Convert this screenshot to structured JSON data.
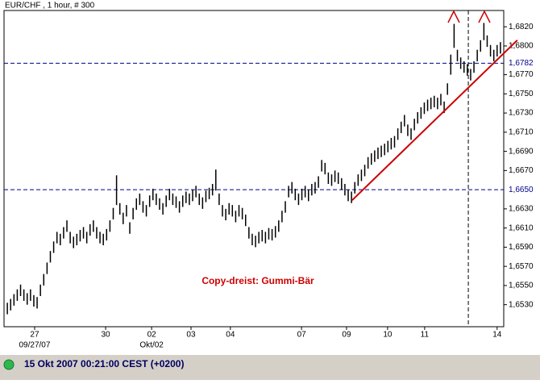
{
  "chart_data": {
    "type": "ohlc",
    "title": "EUR/CHF , 1 hour, # 300",
    "annotation": "Copy-dreist: Gummi-Bär",
    "status": "15 Okt 2007 00:21:00  CEST (+0200)",
    "color": "#000000",
    "xlim": [
      -1,
      150
    ],
    "ylim": [
      1.6507,
      1.6837
    ],
    "high": [
      1.6532,
      1.6536,
      1.6541,
      1.6546,
      1.6551,
      1.6546,
      1.6542,
      1.6546,
      1.654,
      1.6538,
      1.6551,
      1.6562,
      1.6574,
      1.6586,
      1.6596,
      1.6606,
      1.6604,
      1.6611,
      1.6618,
      1.6606,
      1.6601,
      1.6604,
      1.6608,
      1.6611,
      1.6606,
      1.6614,
      1.6618,
      1.6611,
      1.6606,
      1.6604,
      1.6609,
      1.6618,
      1.6631,
      1.6665,
      1.6636,
      1.6626,
      1.6634,
      1.6616,
      1.6631,
      1.6641,
      1.6646,
      1.6638,
      1.6634,
      1.6644,
      1.6651,
      1.6646,
      1.6641,
      1.6636,
      1.6644,
      1.6651,
      1.6646,
      1.6643,
      1.6638,
      1.6644,
      1.6648,
      1.6646,
      1.665,
      1.6654,
      1.6646,
      1.6642,
      1.6649,
      1.6652,
      1.6656,
      1.6671,
      1.6646,
      1.6634,
      1.663,
      1.6636,
      1.6634,
      1.6628,
      1.6634,
      1.6631,
      1.6624,
      1.6611,
      1.6604,
      1.6602,
      1.6606,
      1.6608,
      1.6606,
      1.661,
      1.6609,
      1.6612,
      1.6618,
      1.6628,
      1.6638,
      1.6654,
      1.6658,
      1.6651,
      1.6646,
      1.6651,
      1.6654,
      1.665,
      1.6656,
      1.6658,
      1.6664,
      1.6681,
      1.6678,
      1.6668,
      1.6666,
      1.667,
      1.6668,
      1.6662,
      1.6656,
      1.665,
      1.6648,
      1.6658,
      1.6666,
      1.6671,
      1.6676,
      1.6684,
      1.6688,
      1.6691,
      1.6694,
      1.6696,
      1.6698,
      1.6701,
      1.6704,
      1.6706,
      1.6714,
      1.6721,
      1.6728,
      1.6718,
      1.6714,
      1.6724,
      1.6731,
      1.6736,
      1.6741,
      1.6744,
      1.6746,
      1.6748,
      1.6746,
      1.675,
      1.6742,
      1.6761,
      1.6791,
      1.6823,
      1.6796,
      1.6788,
      1.6784,
      1.6781,
      1.6776,
      1.6784,
      1.6796,
      1.6806,
      1.6824,
      1.6811,
      1.6801,
      1.6796,
      1.6801,
      1.6804
    ],
    "low": [
      1.652,
      1.6524,
      1.6529,
      1.6534,
      1.6539,
      1.6534,
      1.653,
      1.6534,
      1.6528,
      1.6526,
      1.6539,
      1.655,
      1.6562,
      1.6574,
      1.6584,
      1.6594,
      1.6592,
      1.6599,
      1.6606,
      1.6594,
      1.6589,
      1.6592,
      1.6596,
      1.6599,
      1.6594,
      1.6602,
      1.6606,
      1.6599,
      1.6594,
      1.6592,
      1.6597,
      1.6606,
      1.6619,
      1.6634,
      1.6624,
      1.6614,
      1.6622,
      1.6604,
      1.6619,
      1.6629,
      1.6634,
      1.6626,
      1.6622,
      1.6632,
      1.6639,
      1.6634,
      1.6629,
      1.6624,
      1.6632,
      1.6639,
      1.6634,
      1.6631,
      1.6626,
      1.6632,
      1.6636,
      1.6634,
      1.6638,
      1.6642,
      1.6634,
      1.663,
      1.6637,
      1.664,
      1.6644,
      1.6649,
      1.6634,
      1.6622,
      1.6618,
      1.6624,
      1.6622,
      1.6616,
      1.6622,
      1.6619,
      1.6612,
      1.6599,
      1.6592,
      1.659,
      1.6594,
      1.6596,
      1.6594,
      1.6598,
      1.6597,
      1.66,
      1.6606,
      1.6616,
      1.6626,
      1.6642,
      1.6646,
      1.6639,
      1.6634,
      1.6639,
      1.6642,
      1.6638,
      1.6644,
      1.6646,
      1.6652,
      1.6669,
      1.6666,
      1.6656,
      1.6654,
      1.6658,
      1.6656,
      1.665,
      1.6644,
      1.6638,
      1.6636,
      1.6646,
      1.6654,
      1.6659,
      1.6664,
      1.6672,
      1.6676,
      1.6679,
      1.6682,
      1.6684,
      1.6686,
      1.6689,
      1.6692,
      1.6694,
      1.6702,
      1.6709,
      1.6716,
      1.6706,
      1.6702,
      1.6712,
      1.6719,
      1.6724,
      1.6729,
      1.6732,
      1.6734,
      1.6736,
      1.6734,
      1.6738,
      1.673,
      1.6749,
      1.677,
      1.6798,
      1.6784,
      1.6776,
      1.6772,
      1.6769,
      1.6764,
      1.6772,
      1.6784,
      1.6794,
      1.6806,
      1.6799,
      1.6789,
      1.6784,
      1.6789,
      1.6792
    ],
    "yticks": [
      {
        "value": 1.653,
        "label": "1,6530"
      },
      {
        "value": 1.655,
        "label": "1,6550"
      },
      {
        "value": 1.657,
        "label": "1,6570"
      },
      {
        "value": 1.659,
        "label": "1,6590"
      },
      {
        "value": 1.661,
        "label": "1,6610"
      },
      {
        "value": 1.663,
        "label": "1,6630"
      },
      {
        "value": 1.667,
        "label": "1,6670"
      },
      {
        "value": 1.669,
        "label": "1,6690"
      },
      {
        "value": 1.671,
        "label": "1,6710"
      },
      {
        "value": 1.673,
        "label": "1,6730"
      },
      {
        "value": 1.675,
        "label": "1,6750"
      },
      {
        "value": 1.677,
        "label": "1,6770"
      },
      {
        "value": 1.68,
        "label": "1,6800"
      },
      {
        "value": 1.682,
        "label": "1,6820"
      }
    ],
    "xticks": [
      {
        "value": 8.25,
        "label": "27",
        "sublabel": "09/27/07"
      },
      {
        "value": 29.7,
        "label": "30"
      },
      {
        "value": 43.6,
        "label": "02",
        "sublabel": "Okt/02"
      },
      {
        "value": 55.5,
        "label": "03"
      },
      {
        "value": 67.4,
        "label": "04"
      },
      {
        "value": 88.9,
        "label": "07"
      },
      {
        "value": 102.5,
        "label": "09"
      },
      {
        "value": 114.9,
        "label": "10"
      },
      {
        "value": 126.1,
        "label": "11"
      },
      {
        "value": 148,
        "label": "14"
      }
    ],
    "hlines": [
      {
        "value": 1.665,
        "label": "1,6650",
        "color": "#00008b"
      },
      {
        "value": 1.6782,
        "label": "1,6782",
        "color": "#00008b"
      }
    ],
    "vlines": [
      139.3
    ],
    "trendline": {
      "x": [
        104.2,
        154.1
      ],
      "y": [
        1.6639,
        1.6806
      ],
      "color": "#cc0000"
    }
  }
}
